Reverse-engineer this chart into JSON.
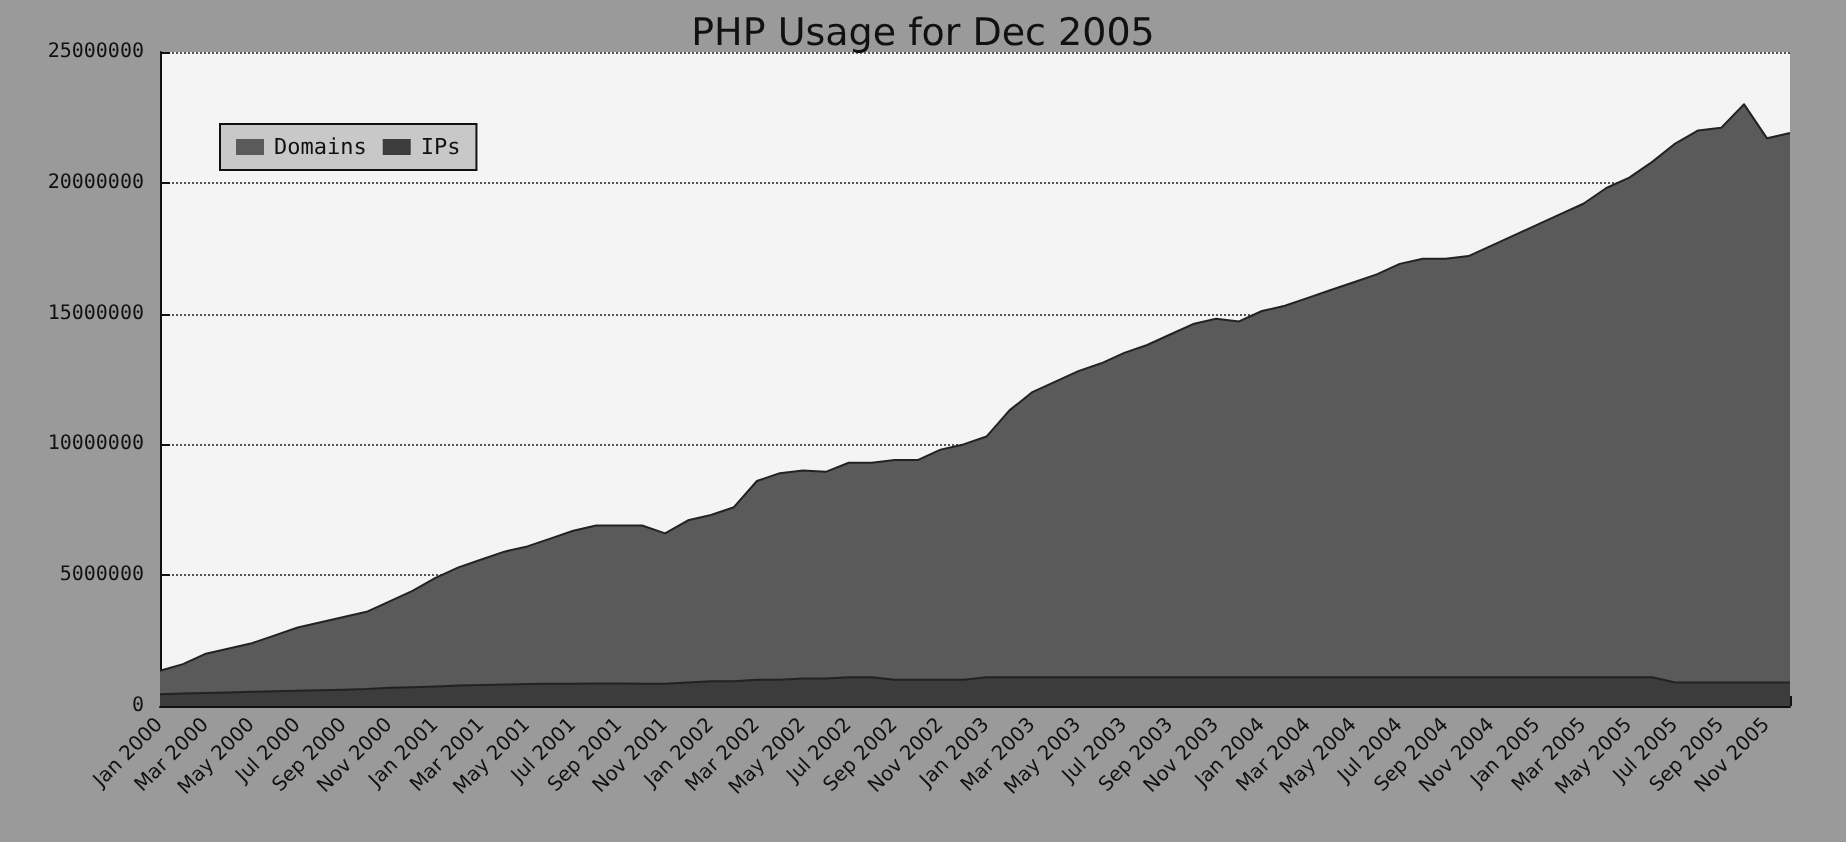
{
  "chart_data": {
    "type": "area",
    "title": "PHP Usage for Dec 2005",
    "categories": [
      "Jan 2000",
      null,
      "Mar 2000",
      null,
      "May 2000",
      null,
      "Jul 2000",
      null,
      "Sep 2000",
      null,
      "Nov 2000",
      null,
      "Jan 2001",
      null,
      "Mar 2001",
      null,
      "May 2001",
      null,
      "Jul 2001",
      null,
      "Sep 2001",
      null,
      "Nov 2001",
      null,
      "Jan 2002",
      null,
      "Mar 2002",
      null,
      "May 2002",
      null,
      "Jul 2002",
      null,
      "Sep 2002",
      null,
      "Nov 2002",
      null,
      "Jan 2003",
      null,
      "Mar 2003",
      null,
      "May 2003",
      null,
      "Jul 2003",
      null,
      "Sep 2003",
      null,
      "Nov 2003",
      null,
      "Jan 2004",
      null,
      "Mar 2004",
      null,
      "May 2004",
      null,
      "Jul 2004",
      null,
      "Sep 2004",
      null,
      "Nov 2004",
      null,
      "Jan 2005",
      null,
      "Mar 2005",
      null,
      "May 2005",
      null,
      "Jul 2005",
      null,
      "Sep 2005",
      null,
      "Nov 2005",
      null
    ],
    "series": [
      {
        "name": "Domains",
        "color": "#5a5a5a",
        "values": [
          1350000,
          1600000,
          2000000,
          2200000,
          2400000,
          2700000,
          3000000,
          3200000,
          3400000,
          3600000,
          4000000,
          4400000,
          4900000,
          5300000,
          5600000,
          5900000,
          6100000,
          6400000,
          6700000,
          6900000,
          6900000,
          6900000,
          6600000,
          7100000,
          7300000,
          7600000,
          8600000,
          8900000,
          9000000,
          8950000,
          9300000,
          9300000,
          9400000,
          9400000,
          9800000,
          10000000,
          10300000,
          11300000,
          12000000,
          12400000,
          12800000,
          13100000,
          13500000,
          13800000,
          14200000,
          14600000,
          14800000,
          14700000,
          15100000,
          15300000,
          15600000,
          15900000,
          16200000,
          16500000,
          16900000,
          17100000,
          17100000,
          17200000,
          17600000,
          18000000,
          18400000,
          18800000,
          19200000,
          19800000,
          20200000,
          20800000,
          21500000,
          22000000,
          22100000,
          23000000,
          21700000,
          21900000
        ]
      },
      {
        "name": "IPs",
        "color": "#3c3c3c",
        "values": [
          450000,
          480000,
          500000,
          520000,
          540000,
          560000,
          580000,
          600000,
          620000,
          650000,
          700000,
          720000,
          750000,
          780000,
          800000,
          820000,
          840000,
          850000,
          850000,
          860000,
          860000,
          850000,
          850000,
          900000,
          950000,
          950000,
          1000000,
          1000000,
          1050000,
          1050000,
          1100000,
          1100000,
          1000000,
          1000000,
          1000000,
          1000000,
          1100000,
          1100000,
          1100000,
          1100000,
          1100000,
          1100000,
          1100000,
          1100000,
          1100000,
          1100000,
          1100000,
          1100000,
          1100000,
          1100000,
          1100000,
          1100000,
          1100000,
          1100000,
          1100000,
          1100000,
          1100000,
          1100000,
          1100000,
          1100000,
          1100000,
          1100000,
          1100000,
          1100000,
          1100000,
          1100000,
          900000,
          900000,
          900000,
          900000,
          900000,
          900000
        ]
      }
    ],
    "ylim": [
      0,
      25000000
    ],
    "yticks": [
      0,
      5000000,
      10000000,
      15000000,
      20000000,
      25000000
    ],
    "grid": "y",
    "legend": "top left"
  }
}
